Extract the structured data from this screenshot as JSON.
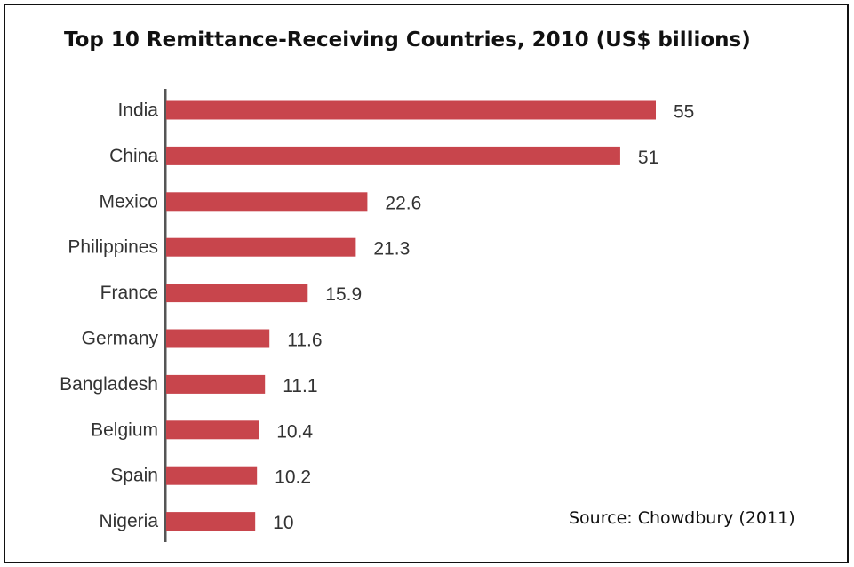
{
  "chart_data": {
    "type": "bar",
    "orientation": "horizontal",
    "title": "Top 10 Remittance-Receiving Countries, 2010 (US$ billions)",
    "categories": [
      "India",
      "China",
      "Mexico",
      "Philippines",
      "France",
      "Germany",
      "Bangladesh",
      "Belgium",
      "Spain",
      "Nigeria"
    ],
    "values": [
      55,
      51,
      22.6,
      21.3,
      15.9,
      11.6,
      11.1,
      10.4,
      10.2,
      10
    ],
    "value_labels": [
      "55",
      "51",
      "22.6",
      "21.3",
      "15.9",
      "11.6",
      "11.1",
      "10.4",
      "10.2",
      "10"
    ],
    "annotation": "Source: Chowdbury (2011)",
    "xlim": [
      0,
      55
    ],
    "grid": false,
    "legend": "none",
    "colors": {
      "bar": "#c8454c",
      "axis": "#555555",
      "text": "#333333"
    }
  }
}
